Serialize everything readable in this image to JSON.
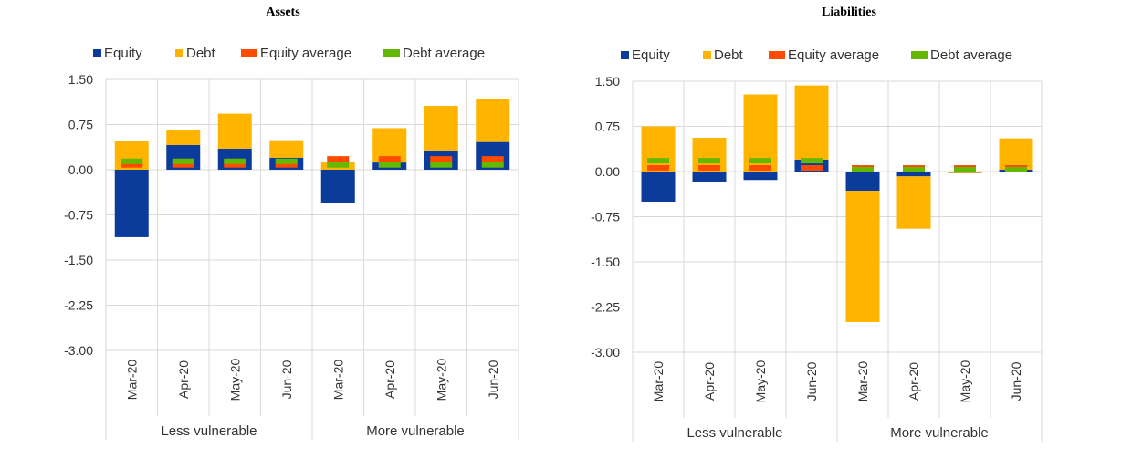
{
  "colors": {
    "equity": "#0b3c9c",
    "debt": "#ffb400",
    "equity_average": "#ff4b00",
    "debt_average": "#65b800",
    "grid": "#d9d9d9"
  },
  "chart_data": [
    {
      "type": "bar",
      "stacked": true,
      "title": "Assets",
      "categories": [
        "Mar-20",
        "Apr-20",
        "May-20",
        "Jun-20",
        "Mar-20",
        "Apr-20",
        "May-20",
        "Jun-20"
      ],
      "groups": [
        {
          "label": "Less vulnerable",
          "span": 4
        },
        {
          "label": "More vulnerable",
          "span": 4
        }
      ],
      "series": [
        {
          "name": "Equity",
          "values": [
            -1.12,
            0.41,
            0.35,
            0.2,
            -0.55,
            0.12,
            0.32,
            0.46
          ]
        },
        {
          "name": "Debt",
          "values": [
            0.47,
            0.25,
            0.58,
            0.29,
            0.12,
            0.57,
            0.74,
            0.72
          ]
        },
        {
          "name": "Equity average",
          "values": [
            0.08,
            0.08,
            0.08,
            0.08,
            0.18,
            0.18,
            0.18,
            0.18
          ]
        },
        {
          "name": "Debt average",
          "values": [
            0.14,
            0.14,
            0.14,
            0.14,
            0.08,
            0.08,
            0.08,
            0.08
          ]
        }
      ],
      "ylim": [
        -3.0,
        1.5
      ],
      "yticks": [
        "1.50",
        "0.75",
        "0.00",
        "-0.75",
        "-1.50",
        "-2.25",
        "-3.00"
      ],
      "grid": true,
      "legend": "top"
    },
    {
      "type": "bar",
      "stacked": true,
      "title": "Liabilities",
      "categories": [
        "Mar-20",
        "Apr-20",
        "May-20",
        "Jun-20",
        "Mar-20",
        "Apr-20",
        "May-20",
        "Jun-20"
      ],
      "groups": [
        {
          "label": "Less vulnerable",
          "span": 4
        },
        {
          "label": "More vulnerable",
          "span": 4
        }
      ],
      "series": [
        {
          "name": "Equity",
          "values": [
            -0.5,
            -0.18,
            -0.14,
            0.2,
            -0.32,
            -0.08,
            -0.02,
            0.03
          ]
        },
        {
          "name": "Debt",
          "values": [
            0.75,
            0.56,
            1.28,
            1.23,
            -2.18,
            -0.87,
            -0.01,
            0.52
          ]
        },
        {
          "name": "Equity average",
          "values": [
            0.06,
            0.06,
            0.06,
            0.06,
            0.06,
            0.06,
            0.06,
            0.06
          ]
        },
        {
          "name": "Debt average",
          "values": [
            0.18,
            0.18,
            0.18,
            0.18,
            0.03,
            0.03,
            0.03,
            0.03
          ]
        }
      ],
      "ylim": [
        -3.0,
        1.5
      ],
      "yticks": [
        "1.50",
        "0.75",
        "0.00",
        "-0.75",
        "-1.50",
        "-2.25",
        "-3.00"
      ],
      "grid": true,
      "legend": "top"
    }
  ]
}
